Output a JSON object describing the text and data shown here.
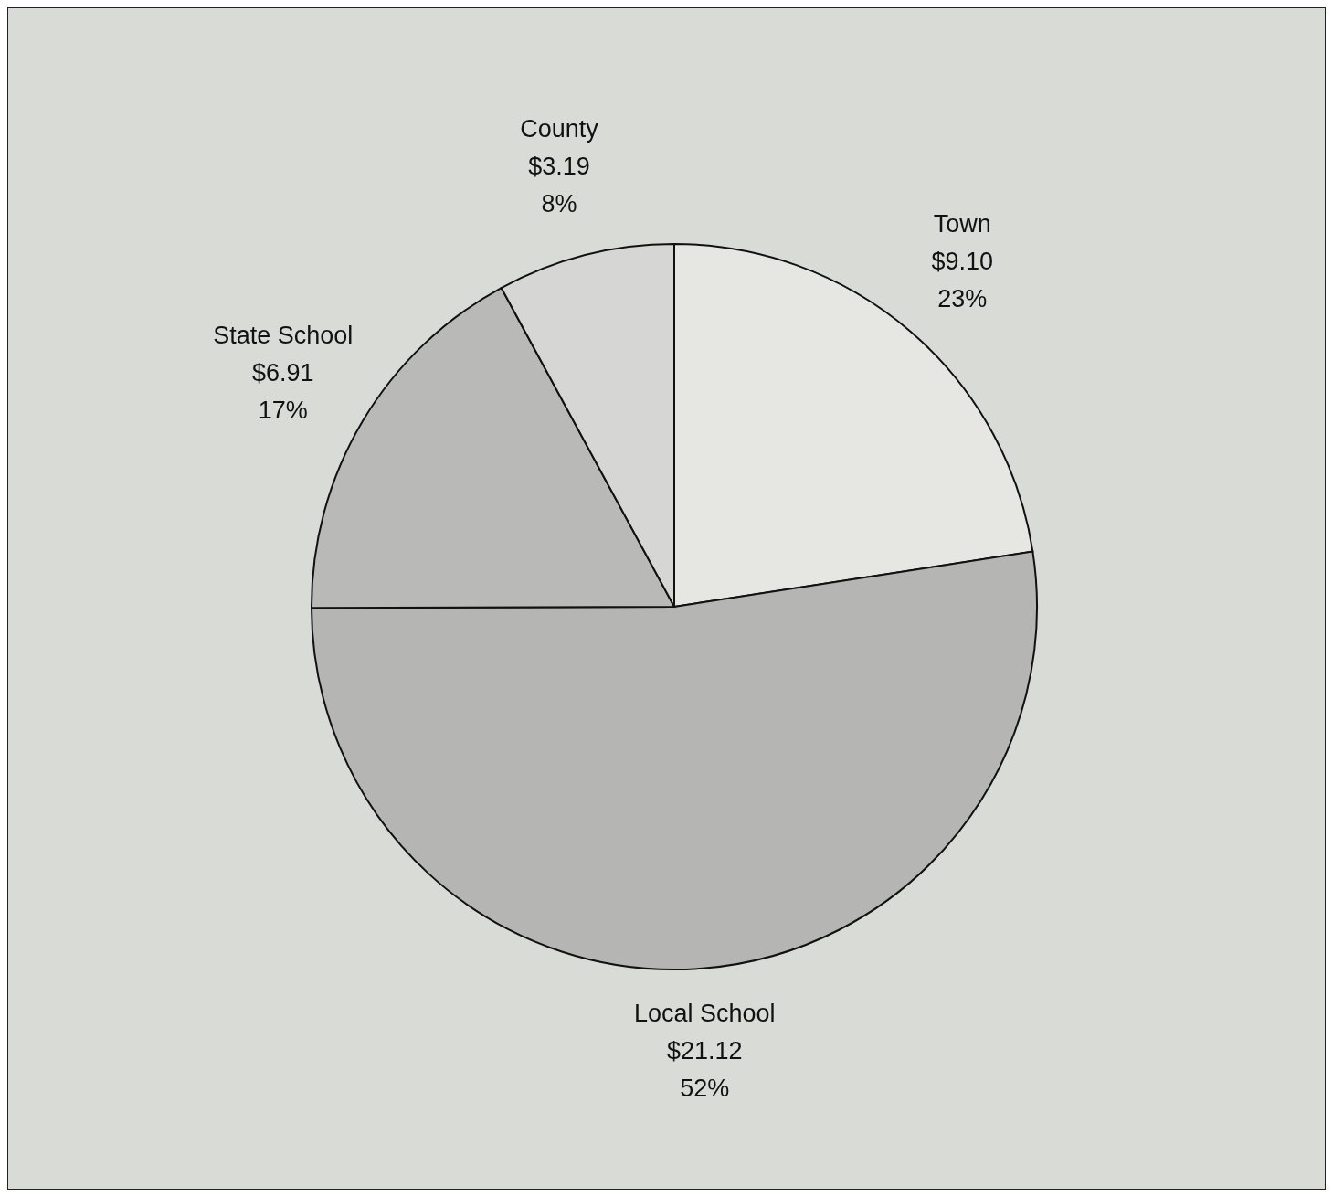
{
  "chart_data": {
    "type": "pie",
    "categories": [
      "Town",
      "Local School",
      "State School",
      "County"
    ],
    "values": [
      9.1,
      21.12,
      6.91,
      3.19
    ],
    "value_labels": [
      "$9.10\n23%",
      "$21.12\n52%",
      "$6.91\n17%",
      "$3.19\n8%"
    ],
    "colors": [
      "#e6e6e2",
      "#b5b5b3",
      "#b9b9b7",
      "#d6d6d4"
    ]
  }
}
